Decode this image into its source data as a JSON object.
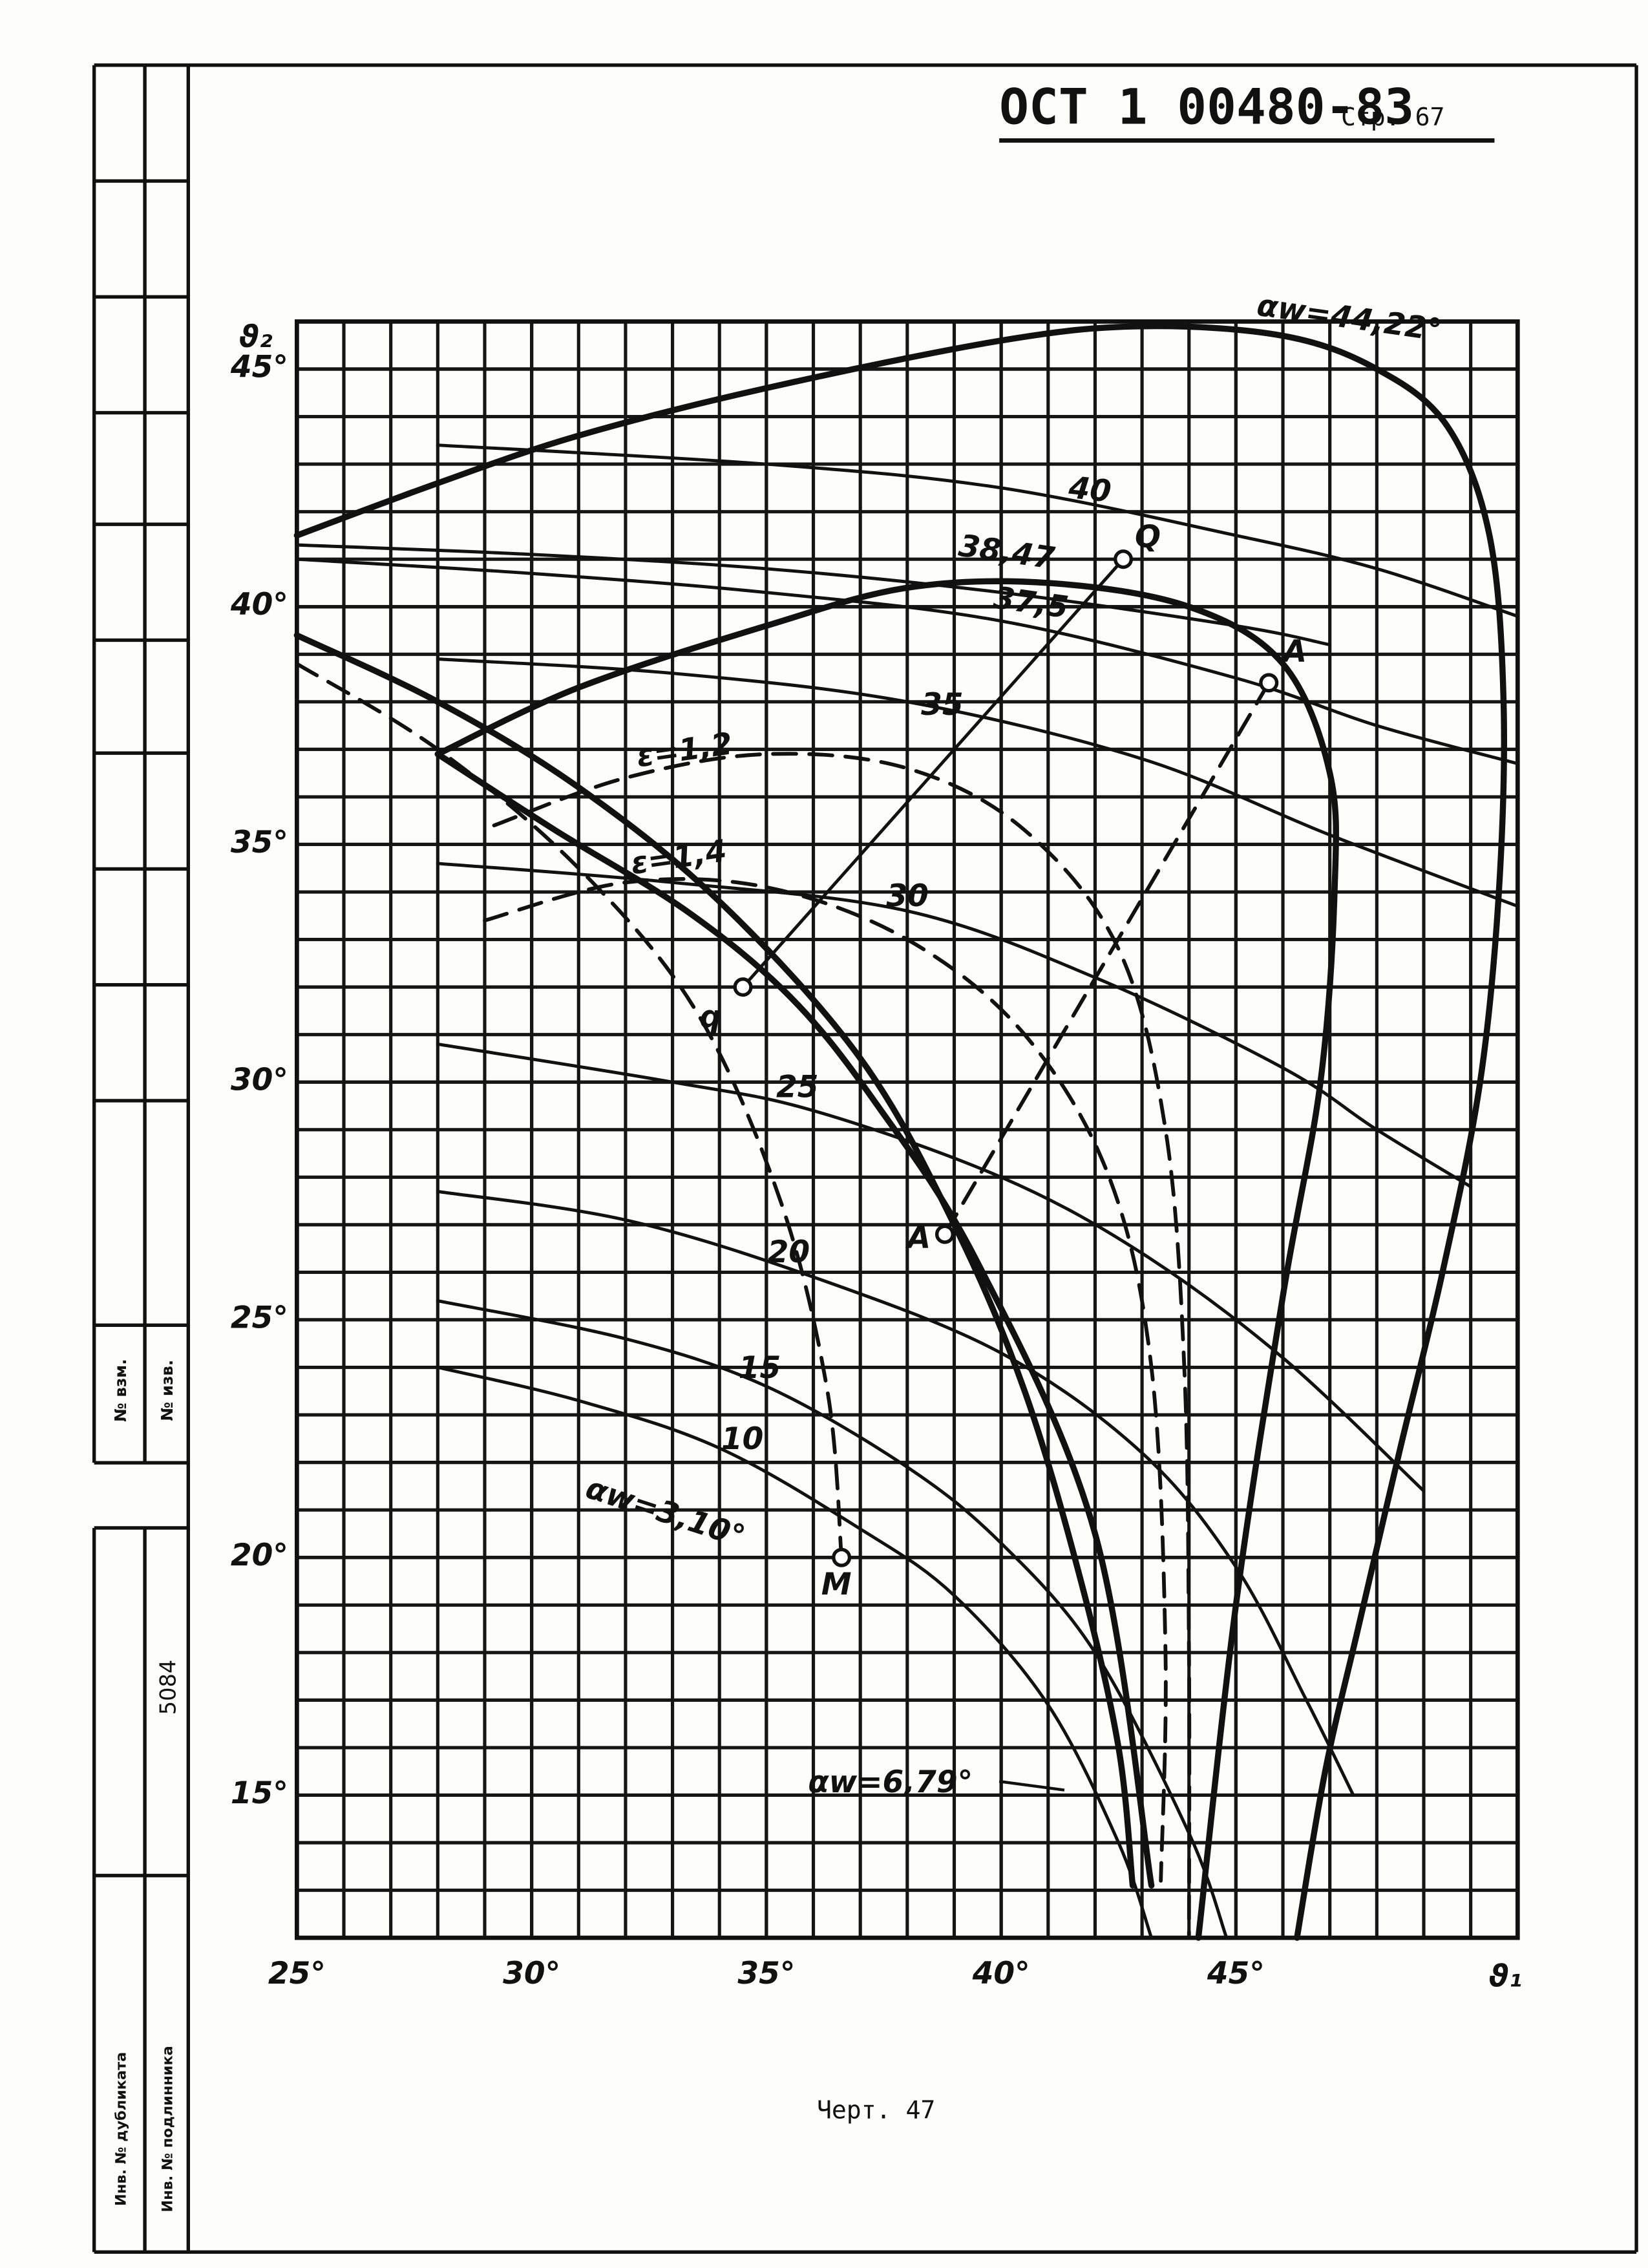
{
  "header": {
    "document": "ОСТ 1 00480-83",
    "page": "Стр. 67"
  },
  "caption": "Черт. 47",
  "stamp": {
    "change_no": "№ взм.",
    "notice_no": "№ изв.",
    "inventory": "5084",
    "duplicate_inv": "Инв. № дубликата",
    "original_inv": "Инв. № подлинника"
  },
  "chart_data": {
    "type": "line",
    "x_label": "ϑ₁",
    "y_label": "ϑ₂",
    "xlim": [
      25,
      51
    ],
    "ylim": [
      12,
      46
    ],
    "xticks": [
      {
        "value": 25,
        "label": "25°"
      },
      {
        "value": 30,
        "label": "30°"
      },
      {
        "value": 35,
        "label": "35°"
      },
      {
        "value": 40,
        "label": "40°"
      },
      {
        "value": 45,
        "label": "45°"
      }
    ],
    "yticks": [
      {
        "value": 15,
        "label": "15°"
      },
      {
        "value": 20,
        "label": "20°"
      },
      {
        "value": 25,
        "label": "25°"
      },
      {
        "value": 30,
        "label": "30°"
      },
      {
        "value": 35,
        "label": "35°"
      },
      {
        "value": 40,
        "label": "40°"
      },
      {
        "value": 45,
        "label": "45°"
      }
    ],
    "grid": true,
    "color": "#111111",
    "series": [
      {
        "name": "αw=44,22°",
        "style": "bold",
        "x": [
          25,
          28,
          31,
          35,
          40,
          43,
          46,
          48,
          49.5,
          50.4,
          50.7,
          50.6,
          50.2,
          49.4,
          48.5,
          47.6,
          46.9,
          46.3
        ],
        "values": [
          41.5,
          42.6,
          43.6,
          44.6,
          45.6,
          45.9,
          45.7,
          45.0,
          43.8,
          41.5,
          38,
          34,
          30,
          26,
          22.3,
          18.5,
          15.5,
          12.0
        ]
      },
      {
        "style": "bold",
        "x": [
          28,
          31,
          35,
          38,
          41,
          44,
          46,
          47,
          47.1,
          46.8,
          46.0,
          45.0,
          44.2
        ],
        "values": [
          36.9,
          38.3,
          39.6,
          40.4,
          40.5,
          40.0,
          38.8,
          36.5,
          34,
          30,
          25.5,
          19,
          12
        ]
      },
      {
        "name": "αw=6,79°",
        "style": "bold",
        "x": [
          25,
          28,
          31,
          34,
          37,
          39,
          40.5,
          41.7,
          42.5,
          42.8
        ],
        "values": [
          39.4,
          38.0,
          36.2,
          33.8,
          30.5,
          27.0,
          23.5,
          19.5,
          16,
          13.1
        ]
      },
      {
        "style": "bold",
        "x": [
          28,
          30.5,
          33.3,
          35.5,
          37.3,
          39.5,
          42,
          43.2
        ],
        "values": [
          36.9,
          35.3,
          33.6,
          31.8,
          29.6,
          26.2,
          20.5,
          13.1
        ]
      },
      {
        "name": "αw=3,10°",
        "style": "dashed",
        "x": [
          25,
          28,
          31,
          33.5,
          35.3,
          36.3,
          36.6
        ],
        "values": [
          38.8,
          37.0,
          34.5,
          31.5,
          27.5,
          23.5,
          20.0
        ]
      },
      {
        "name": "ε=1,2",
        "style": "dashed",
        "x": [
          29.2,
          32,
          35,
          38,
          40.5,
          42.5,
          43.5,
          43.9,
          44,
          44
        ],
        "values": [
          35.4,
          36.4,
          36.9,
          36.6,
          35.3,
          32.8,
          29,
          24,
          18,
          12
        ]
      },
      {
        "name": "ε=1,4",
        "style": "dashed",
        "x": [
          29,
          32,
          35,
          38,
          40.5,
          42.3,
          43.2,
          43.5,
          43.4
        ],
        "values": [
          33.4,
          34.2,
          34.1,
          33.0,
          31,
          28,
          24,
          18,
          13.2
        ]
      },
      {
        "name": "40",
        "style": "thin",
        "x": [
          28,
          35,
          40,
          45,
          48,
          51
        ],
        "values": [
          43.4,
          43.0,
          42.5,
          41.5,
          40.8,
          39.8
        ]
      },
      {
        "name": "38,47",
        "style": "thin",
        "x": [
          25,
          30,
          35,
          40,
          45,
          47
        ],
        "values": [
          41.3,
          41.1,
          40.8,
          40.3,
          39.6,
          39.2
        ]
      },
      {
        "name": "37,5",
        "style": "thin",
        "x": [
          25,
          30,
          35,
          40,
          45,
          48,
          51
        ],
        "values": [
          41.0,
          40.7,
          40.3,
          39.7,
          38.5,
          37.5,
          36.7
        ]
      },
      {
        "name": "35",
        "style": "thin",
        "x": [
          28,
          33,
          38,
          43,
          47,
          51
        ],
        "values": [
          38.9,
          38.6,
          38.0,
          36.8,
          35.2,
          33.7
        ]
      },
      {
        "name": "30",
        "style": "thin",
        "x": [
          28,
          33,
          38,
          42,
          46,
          48,
          50
        ],
        "values": [
          34.6,
          34.2,
          33.6,
          32.2,
          30.3,
          29.0,
          27.8
        ]
      },
      {
        "name": "25",
        "style": "thin",
        "x": [
          28,
          33,
          36,
          40,
          43,
          46,
          49
        ],
        "values": [
          30.8,
          30.0,
          29.4,
          28.0,
          26.4,
          24.2,
          21.4
        ]
      },
      {
        "name": "20",
        "style": "thin",
        "x": [
          28,
          32,
          36,
          40,
          43,
          45,
          46.5,
          47.5
        ],
        "values": [
          27.7,
          27.1,
          25.9,
          24.3,
          22.2,
          19.8,
          17.0,
          15.0
        ]
      },
      {
        "name": "15",
        "style": "thin",
        "x": [
          28,
          32,
          35,
          38,
          40,
          42,
          44,
          44.8
        ],
        "values": [
          25.4,
          24.6,
          23.6,
          21.9,
          20.3,
          18.0,
          14.2,
          12
        ]
      },
      {
        "name": "10",
        "style": "thin",
        "x": [
          28,
          31,
          34,
          37,
          39,
          41,
          42.5,
          43.2
        ],
        "values": [
          24.0,
          23.3,
          22.3,
          20.6,
          19.2,
          16.9,
          14.0,
          12.0
        ]
      },
      {
        "style": "thin",
        "x": [
          34.5,
          42.6
        ],
        "values": [
          32.0,
          41.0
        ]
      },
      {
        "style": "dashed",
        "x": [
          38.8,
          45.7
        ],
        "values": [
          26.8,
          38.4
        ]
      }
    ],
    "points": [
      {
        "label": "A",
        "x": 45.7,
        "y": 38.4
      },
      {
        "label": "A",
        "x": 38.8,
        "y": 26.8
      },
      {
        "label": "Q",
        "x": 42.6,
        "y": 41.0
      },
      {
        "label": "q",
        "x": 34.5,
        "y": 32.0
      },
      {
        "label": "M",
        "x": 36.6,
        "y": 20.0
      }
    ]
  }
}
